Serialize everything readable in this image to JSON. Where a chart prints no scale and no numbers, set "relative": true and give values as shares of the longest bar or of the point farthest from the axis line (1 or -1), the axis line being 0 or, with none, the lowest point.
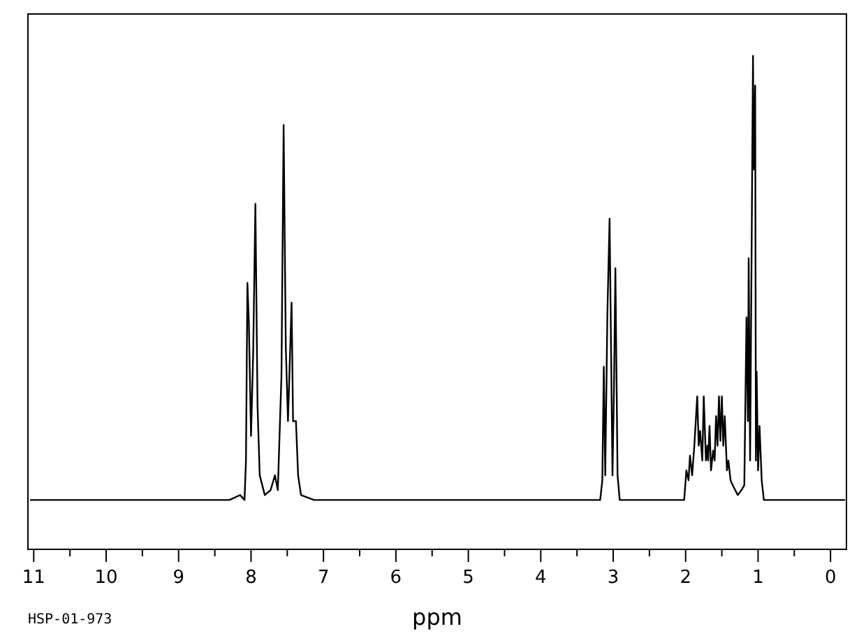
{
  "chart_data": {
    "type": "line",
    "relative": true,
    "xlabel": "ppm",
    "xlim": [
      11.08,
      -0.22
    ],
    "xticks": [
      11,
      {
        "value": 10.5,
        "label": null
      },
      10,
      {
        "value": 9.5,
        "label": null
      },
      9,
      {
        "value": 8.5,
        "label": null
      },
      8,
      {
        "value": 7.5,
        "label": null
      },
      7,
      {
        "value": 6.5,
        "label": null
      },
      6,
      {
        "value": 5.5,
        "label": null
      },
      5,
      {
        "value": 4.5,
        "label": null
      },
      4,
      {
        "value": 3.5,
        "label": null
      },
      3,
      {
        "value": 2.5,
        "label": null
      },
      2,
      {
        "value": 1.5,
        "label": null
      },
      1,
      {
        "value": 0.5,
        "label": null
      },
      0
    ],
    "tick_labels": "x",
    "grid": false,
    "marker": "none",
    "line_style": "solid",
    "x": [
      11.05,
      9.0,
      8.3,
      8.15,
      8.09,
      8.07,
      8.05,
      8.03,
      8.0,
      7.97,
      7.94,
      7.91,
      7.88,
      7.81,
      7.73,
      7.67,
      7.63,
      7.6,
      7.58,
      7.55,
      7.52,
      7.49,
      7.44,
      7.42,
      7.38,
      7.35,
      7.31,
      7.13,
      6.0,
      5.0,
      4.0,
      3.3,
      3.18,
      3.15,
      3.13,
      3.11,
      3.08,
      3.05,
      3.01,
      2.99,
      2.97,
      2.94,
      2.91,
      2.5,
      2.02,
      1.99,
      1.96,
      1.94,
      1.91,
      1.88,
      1.84,
      1.82,
      1.8,
      1.77,
      1.75,
      1.72,
      1.7,
      1.69,
      1.67,
      1.65,
      1.62,
      1.6,
      1.58,
      1.56,
      1.54,
      1.52,
      1.5,
      1.48,
      1.46,
      1.43,
      1.41,
      1.38,
      1.35,
      1.28,
      1.23,
      1.19,
      1.16,
      1.14,
      1.13,
      1.11,
      1.07,
      1.06,
      1.04,
      1.03,
      1.02,
      1.0,
      0.98,
      0.95,
      0.92,
      0.77,
      0.3,
      -0.2
    ],
    "series": [
      {
        "color": "#000000",
        "values": [
          0.1,
          0.1,
          0.1,
          0.11,
          0.1,
          0.18,
          0.54,
          0.46,
          0.23,
          0.4,
          0.7,
          0.29,
          0.15,
          0.11,
          0.12,
          0.15,
          0.12,
          0.26,
          0.35,
          0.86,
          0.41,
          0.26,
          0.5,
          0.26,
          0.26,
          0.15,
          0.11,
          0.1,
          0.1,
          0.1,
          0.1,
          0.1,
          0.1,
          0.14,
          0.37,
          0.15,
          0.48,
          0.67,
          0.15,
          0.32,
          0.57,
          0.15,
          0.1,
          0.1,
          0.1,
          0.16,
          0.14,
          0.19,
          0.15,
          0.21,
          0.31,
          0.21,
          0.24,
          0.18,
          0.31,
          0.18,
          0.21,
          0.18,
          0.25,
          0.16,
          0.2,
          0.18,
          0.27,
          0.21,
          0.31,
          0.22,
          0.31,
          0.21,
          0.27,
          0.16,
          0.18,
          0.14,
          0.13,
          0.11,
          0.12,
          0.13,
          0.47,
          0.26,
          0.59,
          0.18,
          1.0,
          0.77,
          0.94,
          0.18,
          0.36,
          0.16,
          0.25,
          0.14,
          0.1,
          0.1,
          0.1,
          0.1
        ]
      }
    ],
    "annotations": [
      "HSP-01-973"
    ]
  }
}
